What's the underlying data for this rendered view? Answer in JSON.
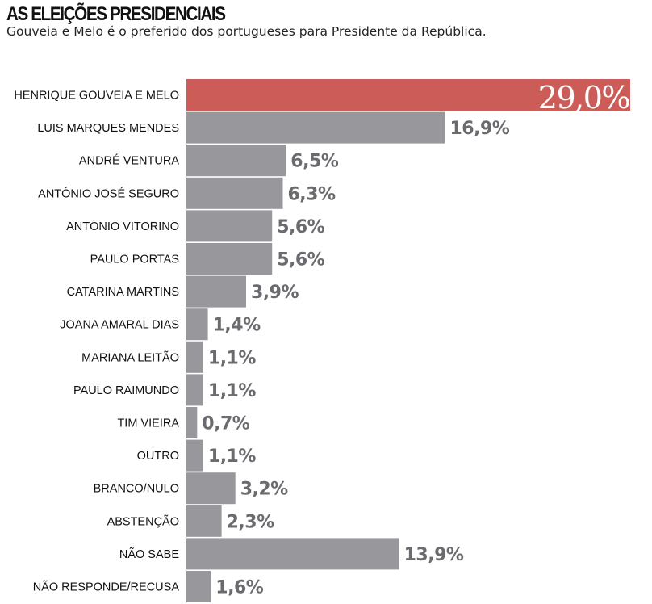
{
  "header": {
    "title": "AS ELEIÇÕES PRESIDENCIAIS",
    "subtitle": "Gouveia e Melo é o preferido dos portugueses para Presidente da República."
  },
  "colors": {
    "highlight": "#cc5c58",
    "bar": "#98979c",
    "value_text": "#6b6a6f",
    "highlight_text": "#ffffff"
  },
  "chart_data": {
    "type": "bar",
    "orientation": "horizontal",
    "categories": [
      "HENRIQUE GOUVEIA E MELO",
      "LUIS MARQUES MENDES",
      "ANDRÉ VENTURA",
      "ANTÓNIO JOSÉ SEGURO",
      "ANTÓNIO VITORINO",
      "PAULO PORTAS",
      "CATARINA MARTINS",
      "JOANA AMARAL DIAS",
      "MARIANA LEITÃO",
      "PAULO RAIMUNDO",
      "TIM VIEIRA",
      "OUTRO",
      "BRANCO/NULO",
      "ABSTENÇÃO",
      "NÃO SABE",
      "NÃO RESPONDE/RECUSA"
    ],
    "values": [
      29.0,
      16.9,
      6.5,
      6.3,
      5.6,
      5.6,
      3.9,
      1.4,
      1.1,
      1.1,
      0.7,
      1.1,
      3.2,
      2.3,
      13.9,
      1.6
    ],
    "value_labels": [
      "29,0%",
      "16,9%",
      "6,5%",
      "6,3%",
      "5,6%",
      "5,6%",
      "3,9%",
      "1,4%",
      "1,1%",
      "1,1%",
      "0,7%",
      "1,1%",
      "3,2%",
      "2,3%",
      "13,9%",
      "1,6%"
    ],
    "highlight_index": 0,
    "xlim": [
      0,
      29.0
    ],
    "grid": false,
    "legend": "none"
  }
}
